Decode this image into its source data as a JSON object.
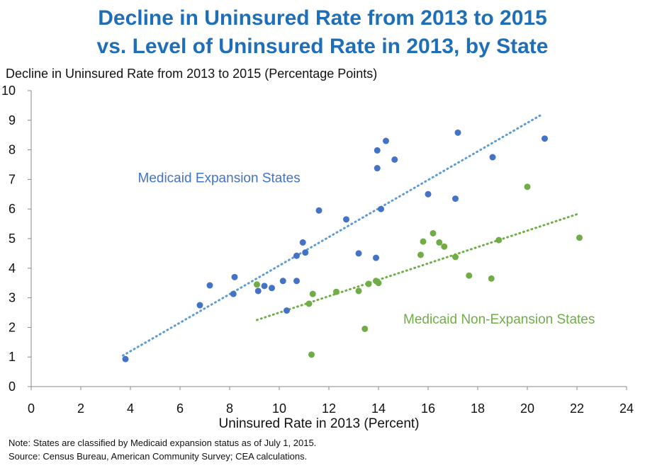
{
  "chart_data": {
    "type": "scatter",
    "title": "Decline in Uninsured Rate from 2013 to 2015",
    "subtitle": "vs. Level of Uninsured Rate in 2013, by State",
    "xlabel": "Uninsured Rate in 2013 (Percent)",
    "ylabel": "Decline in Uninsured Rate from 2013 to 2015 (Percentage Points)",
    "xlim": [
      0,
      24
    ],
    "ylim": [
      0,
      10
    ],
    "xticks": [
      0,
      2,
      4,
      6,
      8,
      10,
      12,
      14,
      16,
      18,
      20,
      22,
      24
    ],
    "yticks": [
      0,
      1,
      2,
      3,
      4,
      5,
      6,
      7,
      8,
      9,
      10
    ],
    "grid": false,
    "series": [
      {
        "name": "Medicaid Expansion States",
        "color": "#4472c4",
        "trend_color": "#5b9bd5",
        "trendline": [
          [
            3.7,
            1.05
          ],
          [
            20.6,
            9.2
          ]
        ],
        "label_at": [
          4.3,
          6.9
        ],
        "points": [
          [
            3.8,
            0.93
          ],
          [
            6.8,
            2.75
          ],
          [
            7.2,
            3.42
          ],
          [
            8.15,
            3.13
          ],
          [
            8.2,
            3.7
          ],
          [
            9.15,
            3.23
          ],
          [
            9.4,
            3.4
          ],
          [
            9.7,
            3.33
          ],
          [
            10.15,
            3.57
          ],
          [
            10.3,
            2.57
          ],
          [
            10.7,
            4.42
          ],
          [
            10.7,
            3.57
          ],
          [
            10.95,
            4.87
          ],
          [
            11.05,
            4.53
          ],
          [
            11.6,
            5.95
          ],
          [
            12.7,
            5.65
          ],
          [
            13.2,
            4.5
          ],
          [
            13.9,
            4.35
          ],
          [
            13.95,
            7.38
          ],
          [
            13.95,
            7.98
          ],
          [
            14.1,
            6.0
          ],
          [
            14.3,
            8.3
          ],
          [
            14.65,
            7.67
          ],
          [
            16.0,
            6.5
          ],
          [
            17.1,
            6.35
          ],
          [
            17.2,
            8.58
          ],
          [
            18.6,
            7.75
          ],
          [
            20.7,
            8.38
          ]
        ]
      },
      {
        "name": "Medicaid Non-Expansion States",
        "color": "#70ad47",
        "trend_color": "#70ad47",
        "trendline": [
          [
            9.1,
            2.25
          ],
          [
            22.1,
            5.85
          ]
        ],
        "label_at": [
          15.0,
          2.13
        ],
        "points": [
          [
            9.1,
            3.45
          ],
          [
            11.2,
            2.8
          ],
          [
            11.3,
            1.08
          ],
          [
            11.35,
            3.13
          ],
          [
            12.3,
            3.2
          ],
          [
            13.2,
            3.23
          ],
          [
            13.45,
            1.95
          ],
          [
            13.6,
            3.47
          ],
          [
            13.9,
            3.57
          ],
          [
            14.0,
            3.5
          ],
          [
            15.7,
            4.45
          ],
          [
            15.8,
            4.9
          ],
          [
            16.2,
            5.18
          ],
          [
            16.45,
            4.87
          ],
          [
            16.65,
            4.73
          ],
          [
            17.1,
            4.38
          ],
          [
            17.65,
            3.75
          ],
          [
            18.55,
            3.65
          ],
          [
            18.85,
            4.95
          ],
          [
            20.0,
            6.75
          ],
          [
            22.1,
            5.03
          ]
        ]
      }
    ],
    "notes": [
      "Note: States are classified by Medicaid expansion status as of July 1, 2015.",
      "Source: Census Bureau, American Community Survey; CEA calculations."
    ]
  }
}
